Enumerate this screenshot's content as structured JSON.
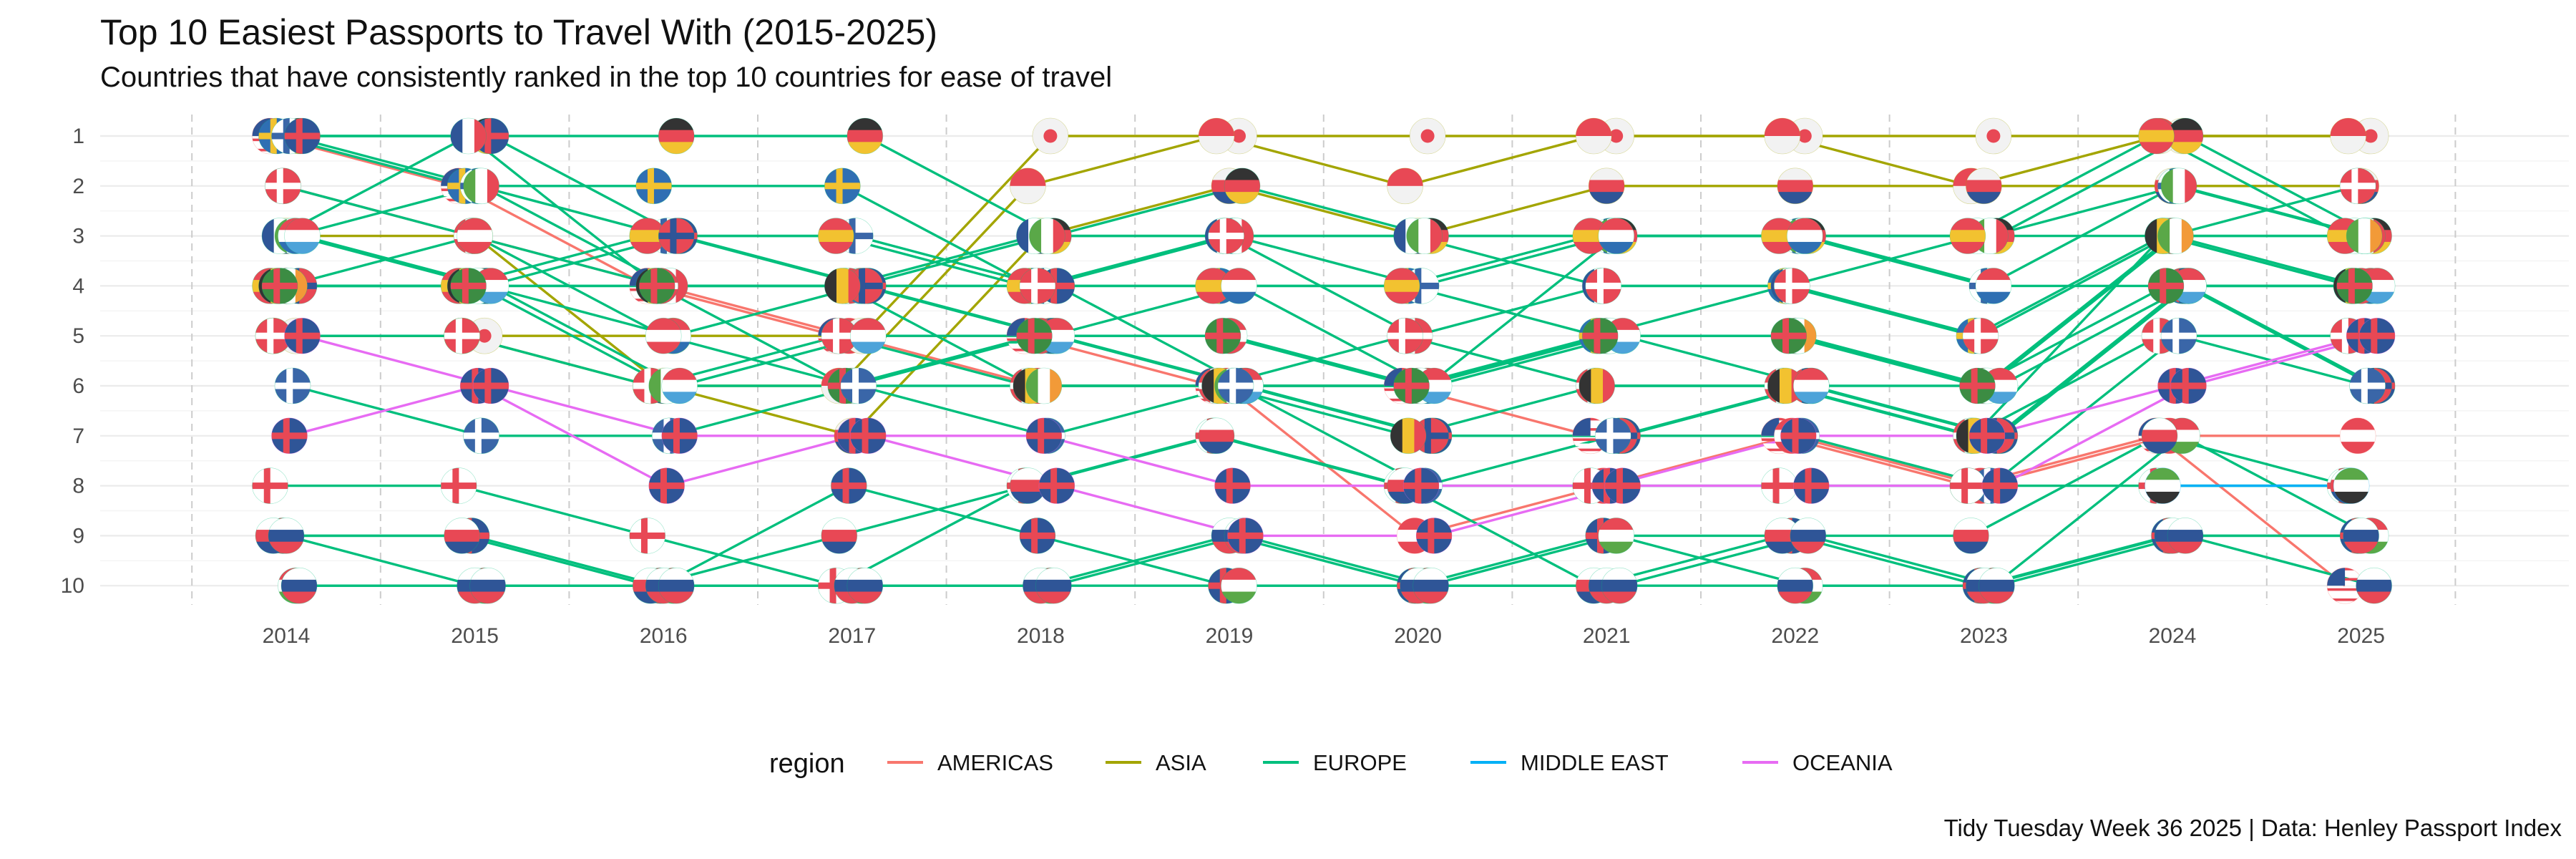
{
  "title": "Top 10 Easiest Passports to Travel With (2015-2025)",
  "subtitle": "Countries that have consistently ranked in the top 10 countries for ease of travel",
  "caption": "Tidy Tuesday Week 36 2025 | Data: Henley Passport Index",
  "colors": {
    "AMERICAS": "#F8766D",
    "ASIA": "#A3A500",
    "EUROPE": "#00BF7D",
    "MIDDLE EAST": "#00B0F6",
    "OCEANIA": "#E76BF3"
  },
  "chart_data": {
    "type": "line",
    "x": [
      2014,
      2015,
      2016,
      2017,
      2018,
      2019,
      2020,
      2021,
      2022,
      2023,
      2024,
      2025
    ],
    "ylim": [
      1,
      10
    ],
    "y_ticks": [
      1,
      2,
      3,
      4,
      5,
      6,
      7,
      8,
      9,
      10
    ],
    "y_reversed": true,
    "grid": true,
    "legend": {
      "title": "region",
      "position": "bottom",
      "entries": [
        "AMERICAS",
        "ASIA",
        "EUROPE",
        "MIDDLE EAST",
        "OCEANIA"
      ]
    },
    "series": [
      {
        "region": "AMERICAS",
        "flag": "us",
        "values": [
          1,
          2,
          4,
          5,
          5,
          6,
          6,
          7,
          7,
          8,
          7,
          10
        ]
      },
      {
        "region": "AMERICAS",
        "flag": "ca",
        "values": [
          2,
          3,
          4,
          5,
          6,
          6,
          9,
          8,
          7,
          8,
          7,
          7
        ]
      },
      {
        "region": "ASIA",
        "flag": "jp",
        "values": [
          5,
          5,
          5,
          5,
          1,
          1,
          1,
          1,
          1,
          1,
          1,
          1
        ]
      },
      {
        "region": "ASIA",
        "flag": "sg",
        "values": [
          5,
          5,
          6,
          6,
          2,
          1,
          2,
          1,
          1,
          2,
          1,
          1
        ]
      },
      {
        "region": "ASIA",
        "flag": "kr",
        "values": [
          3,
          3,
          6,
          7,
          3,
          2,
          3,
          2,
          2,
          2,
          2,
          2
        ]
      },
      {
        "region": "EUROPE",
        "flag": "de",
        "values": [
          1,
          1,
          1,
          1,
          3,
          2,
          3,
          3,
          3,
          3,
          1,
          3
        ]
      },
      {
        "region": "EUROPE",
        "flag": "se",
        "values": [
          1,
          2,
          2,
          2,
          4,
          4,
          4,
          5,
          4,
          5,
          3,
          4
        ]
      },
      {
        "region": "EUROPE",
        "flag": "fi",
        "values": [
          1,
          2,
          3,
          3,
          4,
          3,
          4,
          3,
          3,
          4,
          2,
          3
        ]
      },
      {
        "region": "EUROPE",
        "flag": "gb",
        "values": [
          1,
          1,
          3,
          4,
          4,
          6,
          7,
          7,
          6,
          7,
          4,
          6
        ]
      },
      {
        "region": "EUROPE",
        "flag": "fr",
        "values": [
          3,
          1,
          4,
          4,
          3,
          3,
          3,
          4,
          4,
          3,
          3,
          3
        ]
      },
      {
        "region": "EUROPE",
        "flag": "it",
        "values": [
          3,
          2,
          4,
          4,
          3,
          3,
          3,
          3,
          3,
          3,
          2,
          3
        ]
      },
      {
        "region": "EUROPE",
        "flag": "es",
        "values": [
          4,
          4,
          3,
          3,
          4,
          4,
          4,
          3,
          3,
          3,
          1,
          3
        ]
      },
      {
        "region": "EUROPE",
        "flag": "dk",
        "values": [
          2,
          3,
          4,
          4,
          4,
          3,
          5,
          4,
          4,
          5,
          3,
          2
        ]
      },
      {
        "region": "EUROPE",
        "flag": "nl",
        "values": [
          3,
          4,
          5,
          4,
          5,
          4,
          6,
          3,
          3,
          4,
          4,
          4
        ]
      },
      {
        "region": "EUROPE",
        "flag": "ch",
        "values": [
          5,
          5,
          6,
          5,
          6,
          6,
          5,
          6,
          6,
          7,
          5,
          5
        ]
      },
      {
        "region": "EUROPE",
        "flag": "at",
        "values": [
          4,
          3,
          5,
          6,
          5,
          5,
          6,
          5,
          5,
          6,
          3,
          4
        ]
      },
      {
        "region": "EUROPE",
        "flag": "no",
        "values": [
          4,
          4,
          3,
          4,
          5,
          6,
          7,
          7,
          6,
          7,
          4,
          6
        ]
      },
      {
        "region": "EUROPE",
        "flag": "be",
        "values": [
          4,
          4,
          4,
          4,
          6,
          6,
          7,
          6,
          6,
          7,
          3,
          4
        ]
      },
      {
        "region": "EUROPE",
        "flag": "ie",
        "values": [
          4,
          4,
          6,
          6,
          6,
          6,
          6,
          5,
          5,
          6,
          3,
          3
        ]
      },
      {
        "region": "EUROPE",
        "flag": "lu",
        "values": [
          3,
          4,
          6,
          5,
          5,
          6,
          6,
          5,
          6,
          6,
          4,
          4
        ]
      },
      {
        "region": "EUROPE",
        "flag": "pt",
        "values": [
          4,
          4,
          4,
          6,
          5,
          5,
          6,
          5,
          5,
          6,
          4,
          4
        ]
      },
      {
        "region": "EUROPE",
        "flag": "gr",
        "values": [
          6,
          7,
          7,
          6,
          7,
          6,
          8,
          7,
          7,
          8,
          5,
          6
        ]
      },
      {
        "region": "EUROPE",
        "flag": "mt",
        "values": [
          8,
          8,
          9,
          10,
          8,
          7,
          8,
          8,
          8,
          8,
          8,
          8
        ]
      },
      {
        "region": "EUROPE",
        "flag": "is",
        "values": [
          9,
          9,
          10,
          8,
          9,
          10,
          10,
          9,
          9,
          10,
          9,
          9
        ]
      },
      {
        "region": "EUROPE",
        "flag": "hu",
        "values": [
          10,
          10,
          10,
          10,
          10,
          10,
          10,
          9,
          10,
          10,
          7,
          9
        ]
      },
      {
        "region": "EUROPE",
        "flag": "cz",
        "values": [
          9,
          9,
          10,
          9,
          8,
          7,
          8,
          10,
          9,
          9,
          7,
          8
        ]
      },
      {
        "region": "EUROPE",
        "flag": "si",
        "values": [
          9,
          10,
          10,
          10,
          10,
          9,
          10,
          10,
          10,
          10,
          9,
          9
        ]
      },
      {
        "region": "EUROPE",
        "flag": "sk",
        "values": [
          10,
          10,
          10,
          10,
          10,
          9,
          10,
          10,
          9,
          10,
          9,
          10
        ]
      },
      {
        "region": "MIDDLE EAST",
        "flag": "ae",
        "values": [
          null,
          null,
          null,
          null,
          null,
          null,
          null,
          null,
          null,
          null,
          8,
          8
        ]
      },
      {
        "region": "OCEANIA",
        "flag": "au",
        "values": [
          7,
          6,
          8,
          7,
          7,
          8,
          8,
          8,
          7,
          7,
          6,
          5
        ]
      },
      {
        "region": "OCEANIA",
        "flag": "nz",
        "values": [
          5,
          6,
          7,
          7,
          8,
          9,
          9,
          8,
          8,
          8,
          6,
          5
        ]
      }
    ]
  }
}
